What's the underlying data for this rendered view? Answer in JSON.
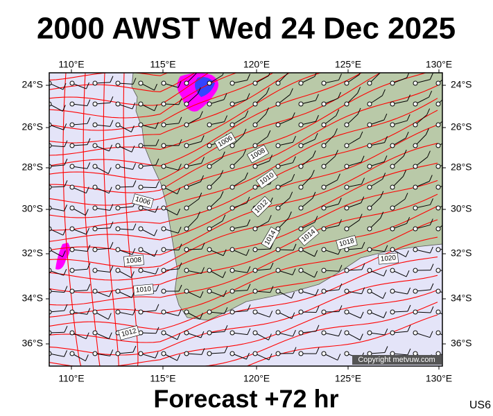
{
  "header": {
    "title": "2000 AWST Wed 24 Dec 2025"
  },
  "map": {
    "lon_labels": [
      "110°E",
      "115°E",
      "120°E",
      "125°E",
      "130°E"
    ],
    "lat_labels": [
      "24°S",
      "26°S",
      "28°S",
      "30°S",
      "32°S",
      "34°S",
      "36°S"
    ],
    "isobar_labels": [
      "1006",
      "1008",
      "1010",
      "1012",
      "1006",
      "1014",
      "1014",
      "1018",
      "1020",
      "1008",
      "1010",
      "1012"
    ],
    "copyright": "Copyright metvuw.com"
  },
  "footer": {
    "subtitle": "Forecast +72 hr",
    "code": "US6"
  }
}
